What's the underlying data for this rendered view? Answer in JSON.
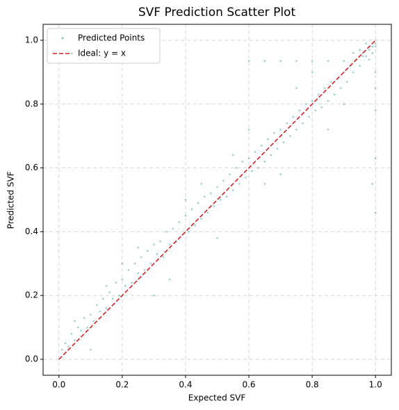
{
  "chart_data": {
    "type": "scatter",
    "title": "SVF Prediction Scatter Plot",
    "x_label": "Expected SVF",
    "y_label": "Predicted SVF",
    "xlim": [
      -0.05,
      1.05
    ],
    "ylim": [
      -0.05,
      1.05
    ],
    "xticks": [
      {
        "value": 0.0,
        "label": "0.0"
      },
      0.2,
      0.4,
      0.6,
      0.8,
      {
        "value": 1.0,
        "label": "1.0"
      }
    ],
    "yticks": [
      {
        "value": 0.0,
        "label": "0.0"
      },
      0.2,
      0.4,
      0.6,
      0.8,
      {
        "value": 1.0,
        "label": "1.0"
      }
    ],
    "grid": true,
    "legend": "upper left",
    "series": [
      {
        "name": "Predicted Points",
        "type": "scatter",
        "color": "#2ca58a",
        "x": [
          0.01,
          0.02,
          0.03,
          0.04,
          0.05,
          0.06,
          0.07,
          0.08,
          0.09,
          0.1,
          0.11,
          0.12,
          0.13,
          0.14,
          0.15,
          0.16,
          0.17,
          0.18,
          0.19,
          0.2,
          0.21,
          0.22,
          0.23,
          0.24,
          0.25,
          0.26,
          0.27,
          0.28,
          0.29,
          0.3,
          0.31,
          0.32,
          0.33,
          0.34,
          0.35,
          0.36,
          0.37,
          0.38,
          0.39,
          0.4,
          0.41,
          0.42,
          0.43,
          0.44,
          0.45,
          0.46,
          0.47,
          0.48,
          0.49,
          0.5,
          0.51,
          0.52,
          0.53,
          0.54,
          0.55,
          0.56,
          0.57,
          0.58,
          0.59,
          0.6,
          0.61,
          0.62,
          0.63,
          0.64,
          0.65,
          0.66,
          0.67,
          0.68,
          0.69,
          0.7,
          0.71,
          0.72,
          0.73,
          0.74,
          0.75,
          0.76,
          0.77,
          0.78,
          0.79,
          0.8,
          0.81,
          0.82,
          0.83,
          0.84,
          0.85,
          0.86,
          0.87,
          0.88,
          0.89,
          0.9,
          0.91,
          0.92,
          0.93,
          0.94,
          0.95,
          0.96,
          0.97,
          0.98,
          0.99,
          1.0,
          0.6,
          0.65,
          0.7,
          0.75,
          0.8,
          0.85,
          0.9,
          0.95,
          0.97,
          0.99,
          0.96,
          1.0,
          0.98,
          0.93,
          1.0,
          1.0,
          1.0,
          1.0,
          0.99,
          1.0,
          0.05,
          0.1,
          0.2,
          0.3,
          0.4,
          0.5,
          0.6,
          0.7,
          0.8,
          0.85,
          0.45,
          0.35,
          0.25,
          0.15,
          0.55,
          0.65,
          0.75,
          0.9
        ],
        "y": [
          0.03,
          0.05,
          0.04,
          0.08,
          0.06,
          0.1,
          0.09,
          0.13,
          0.1,
          0.14,
          0.12,
          0.17,
          0.15,
          0.19,
          0.16,
          0.21,
          0.19,
          0.24,
          0.2,
          0.25,
          0.23,
          0.28,
          0.24,
          0.3,
          0.27,
          0.32,
          0.28,
          0.34,
          0.3,
          0.36,
          0.33,
          0.37,
          0.32,
          0.4,
          0.36,
          0.41,
          0.37,
          0.43,
          0.39,
          0.45,
          0.4,
          0.47,
          0.42,
          0.49,
          0.44,
          0.51,
          0.46,
          0.52,
          0.48,
          0.54,
          0.5,
          0.56,
          0.51,
          0.58,
          0.53,
          0.6,
          0.55,
          0.62,
          0.57,
          0.63,
          0.59,
          0.65,
          0.6,
          0.67,
          0.62,
          0.69,
          0.64,
          0.71,
          0.66,
          0.72,
          0.68,
          0.74,
          0.7,
          0.76,
          0.72,
          0.78,
          0.74,
          0.8,
          0.76,
          0.81,
          0.78,
          0.83,
          0.79,
          0.85,
          0.81,
          0.87,
          0.83,
          0.88,
          0.85,
          0.9,
          0.87,
          0.92,
          0.9,
          0.94,
          0.92,
          0.96,
          0.95,
          0.97,
          0.98,
          0.99,
          0.935,
          0.935,
          0.935,
          0.935,
          0.935,
          0.935,
          0.935,
          0.97,
          0.99,
          0.96,
          0.95,
          0.98,
          0.94,
          0.96,
          0.9,
          0.85,
          0.78,
          0.63,
          0.55,
          0.46,
          0.12,
          0.03,
          0.3,
          0.2,
          0.5,
          0.38,
          0.72,
          0.58,
          0.9,
          0.72,
          0.55,
          0.25,
          0.35,
          0.23,
          0.64,
          0.55,
          0.85,
          0.8
        ]
      },
      {
        "name": "Ideal: y = x",
        "type": "line",
        "linestyle": "dashed",
        "color": "#e41a1c",
        "x": [
          0,
          1
        ],
        "y": [
          0,
          1
        ]
      }
    ]
  }
}
